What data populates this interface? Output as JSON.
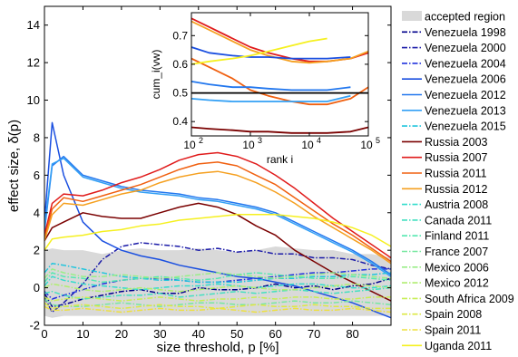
{
  "chart_data": {
    "type": "line",
    "xlabel": "size threshold, p [%]",
    "ylabel": "effect size, δ(p)",
    "xlim": [
      0,
      90
    ],
    "ylim": [
      -2,
      15
    ],
    "xticks": [
      0,
      10,
      20,
      30,
      40,
      50,
      60,
      70,
      80
    ],
    "yticks": [
      -2,
      0,
      2,
      4,
      6,
      8,
      10,
      12,
      14
    ],
    "grid": false,
    "legend_placement": "right, outside plot",
    "accepted_region": {
      "label": "accepted region",
      "color": "#d9d9d9",
      "x": [
        0,
        2,
        5,
        10,
        15,
        20,
        25,
        30,
        35,
        40,
        45,
        50,
        55,
        60,
        65,
        70,
        75,
        80,
        85,
        90
      ],
      "upper": [
        2.0,
        2.1,
        2.0,
        2.0,
        1.8,
        2.0,
        2.1,
        2.0,
        2.0,
        2.1,
        2.0,
        1.9,
        2.0,
        2.2,
        2.1,
        2.0,
        2.0,
        1.8,
        1.8,
        1.6
      ],
      "lower": [
        -1.5,
        -1.6,
        -1.5,
        -1.5,
        -1.5,
        -1.5,
        -1.5,
        -1.5,
        -1.5,
        -1.5,
        -1.5,
        -1.5,
        -1.5,
        -1.5,
        -1.5,
        -1.5,
        -1.5,
        -1.5,
        -1.5,
        -1.5
      ]
    },
    "x": [
      0,
      2,
      5,
      10,
      15,
      20,
      25,
      30,
      35,
      40,
      45,
      50,
      55,
      60,
      65,
      70,
      75,
      80,
      85,
      90
    ],
    "series": [
      {
        "name": "Venezuela 1998",
        "color": "#00008b",
        "dash": "dashdot",
        "values": [
          -0.3,
          -1.0,
          -0.9,
          -0.6,
          -0.4,
          -0.2,
          -0.1,
          -0.3,
          -0.3,
          0.0,
          -0.1,
          -0.1,
          0.0,
          0.2,
          0.0,
          0.1,
          -0.1,
          0.1,
          0.2,
          0.5
        ]
      },
      {
        "name": "Venezuela 2000",
        "color": "#1b1ba8",
        "dash": "dashdot",
        "values": [
          -0.5,
          -1.3,
          -0.8,
          0.2,
          1.5,
          2.2,
          2.4,
          2.3,
          2.2,
          2.0,
          2.1,
          1.9,
          2.0,
          1.8,
          1.8,
          1.6,
          1.6,
          1.5,
          1.2,
          1.0
        ]
      },
      {
        "name": "Venezuela 2004",
        "color": "#2233dd",
        "dash": "dashdot",
        "values": [
          -0.2,
          -0.6,
          -0.4,
          -0.1,
          0.2,
          0.4,
          0.5,
          0.5,
          0.4,
          0.3,
          0.3,
          0.4,
          0.5,
          0.6,
          0.7,
          0.8,
          0.8,
          0.9,
          1.0,
          1.0
        ]
      },
      {
        "name": "Venezuela 2006",
        "color": "#1a4fe0",
        "dash": "solid",
        "values": [
          3.5,
          8.8,
          6.0,
          3.5,
          2.5,
          2.0,
          1.7,
          1.5,
          1.2,
          1.0,
          0.8,
          0.6,
          0.5,
          0.3,
          0.1,
          -0.2,
          -0.5,
          -0.8,
          -1.2,
          -1.6
        ]
      },
      {
        "name": "Venezuela 2012",
        "color": "#2277ee",
        "dash": "solid",
        "values": [
          3.0,
          6.5,
          7.0,
          6.0,
          5.7,
          5.4,
          5.2,
          5.1,
          5.0,
          4.8,
          4.7,
          4.5,
          4.3,
          4.0,
          3.5,
          3.0,
          2.5,
          2.0,
          1.4,
          0.7
        ]
      },
      {
        "name": "Venezuela 2013",
        "color": "#33a0f5",
        "dash": "solid",
        "values": [
          3.2,
          6.6,
          6.9,
          5.9,
          5.6,
          5.3,
          5.1,
          5.0,
          4.9,
          4.7,
          4.6,
          4.4,
          4.2,
          3.9,
          3.4,
          2.9,
          2.4,
          1.9,
          1.3,
          0.6
        ]
      },
      {
        "name": "Venezuela 2015",
        "color": "#22c5dd",
        "dash": "dashdot",
        "values": [
          0.8,
          1.3,
          1.2,
          1.0,
          0.8,
          0.6,
          0.5,
          0.4,
          0.4,
          0.3,
          0.3,
          0.3,
          0.4,
          0.5,
          0.5,
          0.6,
          0.6,
          0.7,
          0.7,
          0.8
        ]
      },
      {
        "name": "Russia 2003",
        "color": "#7a0000",
        "dash": "solid",
        "values": [
          2.5,
          3.2,
          3.5,
          4.0,
          3.8,
          3.7,
          3.7,
          4.0,
          4.3,
          4.5,
          4.3,
          3.9,
          3.3,
          2.8,
          2.0,
          1.4,
          0.8,
          0.3,
          -0.2,
          -0.7
        ]
      },
      {
        "name": "Russia 2007",
        "color": "#e01b1b",
        "dash": "solid",
        "values": [
          2.8,
          4.5,
          5.0,
          4.9,
          5.2,
          5.6,
          5.9,
          6.3,
          6.8,
          7.1,
          7.2,
          7.0,
          6.6,
          6.0,
          5.3,
          4.5,
          3.7,
          3.0,
          2.3,
          1.6
        ]
      },
      {
        "name": "Russia 2011",
        "color": "#f06010",
        "dash": "solid",
        "values": [
          2.6,
          4.2,
          4.8,
          4.6,
          4.9,
          5.2,
          5.5,
          5.9,
          6.3,
          6.6,
          6.7,
          6.5,
          6.0,
          5.5,
          4.8,
          4.1,
          3.4,
          2.8,
          2.1,
          1.4
        ]
      },
      {
        "name": "Russia 2012",
        "color": "#f5a020",
        "dash": "solid",
        "values": [
          2.5,
          3.9,
          4.5,
          4.4,
          4.7,
          5.0,
          5.2,
          5.6,
          5.9,
          6.1,
          6.2,
          6.0,
          5.6,
          5.1,
          4.5,
          3.8,
          3.2,
          2.6,
          2.0,
          1.3
        ]
      },
      {
        "name": "Austria 2008",
        "color": "#33ddcc",
        "dash": "dashdot",
        "values": [
          0.1,
          0.6,
          0.4,
          0.2,
          0.1,
          0.0,
          -0.1,
          0.0,
          0.1,
          0.1,
          0.2,
          0.1,
          0.0,
          0.1,
          0.2,
          0.2,
          0.1,
          0.0,
          0.0,
          0.1
        ]
      },
      {
        "name": "Canada 2011",
        "color": "#44e0c0",
        "dash": "dashdot",
        "values": [
          -0.3,
          -0.2,
          -0.4,
          -0.6,
          -0.5,
          -0.4,
          -0.4,
          -0.3,
          -0.5,
          -0.4,
          -0.3,
          -0.2,
          -0.3,
          -0.2,
          -0.1,
          -0.2,
          -0.3,
          -0.2,
          -0.1,
          0.0
        ]
      },
      {
        "name": "Finland 2011",
        "color": "#55e8b0",
        "dash": "dashdot",
        "values": [
          0.3,
          0.8,
          0.6,
          0.5,
          0.3,
          0.4,
          0.5,
          0.6,
          0.5,
          0.4,
          0.5,
          0.7,
          0.8,
          0.7,
          0.6,
          0.5,
          0.5,
          0.6,
          0.5,
          0.4
        ]
      },
      {
        "name": "France 2007",
        "color": "#77e8a0",
        "dash": "dashdot",
        "values": [
          -0.6,
          -0.9,
          -1.0,
          -1.0,
          -0.9,
          -0.8,
          -0.9,
          -1.0,
          -0.9,
          -0.8,
          -0.8,
          -0.9,
          -0.9,
          -0.8,
          -0.7,
          -0.8,
          -0.8,
          -0.7,
          -0.8,
          -0.9
        ]
      },
      {
        "name": "Mexico 2006",
        "color": "#99ee88",
        "dash": "dashdot",
        "values": [
          0.5,
          1.0,
          0.8,
          0.6,
          0.6,
          0.7,
          0.6,
          0.5,
          0.6,
          0.7,
          0.8,
          0.7,
          0.6,
          0.5,
          0.6,
          0.7,
          0.8,
          0.7,
          0.6,
          0.5
        ]
      },
      {
        "name": "Mexico 2012",
        "color": "#b0ee70",
        "dash": "dashdot",
        "values": [
          0.0,
          0.2,
          0.1,
          -0.1,
          -0.2,
          -0.1,
          0.0,
          -0.1,
          -0.2,
          -0.1,
          0.0,
          0.1,
          0.0,
          -0.1,
          -0.1,
          0.0,
          0.1,
          0.2,
          0.1,
          0.0
        ]
      },
      {
        "name": "South Africa 2009",
        "color": "#c8ee55",
        "dash": "dashdot",
        "values": [
          -0.5,
          -0.7,
          -0.6,
          -0.5,
          -0.6,
          -0.7,
          -0.6,
          -0.5,
          -0.6,
          -0.7,
          -0.6,
          -0.6,
          -0.5,
          -0.6,
          -0.5,
          -0.5,
          -0.6,
          -0.6,
          -0.5,
          -0.5
        ]
      },
      {
        "name": "Spain 2008",
        "color": "#dde844",
        "dash": "dashdot",
        "values": [
          -0.8,
          -1.1,
          -1.0,
          -0.9,
          -1.0,
          -1.1,
          -1.0,
          -0.9,
          -1.0,
          -1.0,
          -1.1,
          -1.0,
          -0.9,
          -1.0,
          -1.0,
          -0.9,
          -1.0,
          -1.0,
          -1.1,
          -1.1
        ]
      },
      {
        "name": "Spain 2011",
        "color": "#eee040",
        "dash": "dashdot",
        "values": [
          -1.0,
          -1.2,
          -1.2,
          -1.1,
          -1.2,
          -1.3,
          -1.2,
          -1.1,
          -1.2,
          -1.2,
          -1.1,
          -1.2,
          -1.3,
          -1.2,
          -1.1,
          -1.2,
          -1.2,
          -1.1,
          -1.2,
          -1.3
        ]
      },
      {
        "name": "Uganda 2011",
        "color": "#f5f020",
        "dash": "solid",
        "values": [
          2.0,
          2.6,
          2.7,
          2.8,
          3.0,
          3.1,
          3.3,
          3.4,
          3.6,
          3.7,
          3.8,
          3.9,
          3.9,
          3.9,
          3.8,
          3.7,
          3.5,
          3.2,
          2.8,
          2.2
        ]
      }
    ],
    "inset": {
      "type": "line",
      "xlabel": "rank i",
      "ylabel": "cum_i(vw)",
      "xscale": "log",
      "xlim": [
        100,
        100000
      ],
      "ylim": [
        0.35,
        0.78
      ],
      "xticks": [
        100,
        1000,
        10000,
        100000
      ],
      "xtick_labels": [
        "10",
        "10",
        "10",
        "10"
      ],
      "xtick_exponents": [
        "2",
        "3",
        "4",
        "5"
      ],
      "yticks": [
        0.4,
        0.5,
        0.6,
        0.7
      ],
      "ytick_labels": [
        "0.4",
        "0.5",
        "0.6",
        "0.7"
      ],
      "x": [
        100,
        200,
        500,
        1000,
        2000,
        5000,
        10000,
        20000,
        50000,
        100000
      ],
      "series": [
        {
          "name": "Russia 2003",
          "color": "#7a0000",
          "values": [
            0.38,
            0.375,
            0.37,
            0.365,
            0.365,
            0.36,
            0.36,
            0.36,
            0.365,
            0.38
          ]
        },
        {
          "name": "Russia 2007",
          "color": "#e01b1b",
          "values": [
            0.76,
            0.73,
            0.69,
            0.66,
            0.64,
            0.62,
            0.61,
            0.61,
            0.62,
            0.64
          ]
        },
        {
          "name": "Russia 2011",
          "color": "#f06010",
          "values": [
            0.62,
            0.59,
            0.55,
            0.51,
            0.49,
            0.47,
            0.46,
            0.46,
            0.48,
            0.52
          ]
        },
        {
          "name": "Russia 2012",
          "color": "#f5a020",
          "values": [
            0.75,
            0.72,
            0.68,
            0.65,
            0.63,
            0.61,
            0.605,
            0.61,
            0.62,
            0.645
          ]
        },
        {
          "name": "Venezuela 2006",
          "color": "#1a4fe0",
          "values": [
            0.66,
            0.64,
            0.63,
            0.625,
            0.625,
            0.62,
            0.62,
            0.62,
            0.625,
            null
          ]
        },
        {
          "name": "Venezuela 2012",
          "color": "#2277ee",
          "values": [
            0.54,
            0.53,
            0.52,
            0.52,
            0.515,
            0.51,
            0.51,
            0.51,
            0.52,
            null
          ]
        },
        {
          "name": "Venezuela 2013",
          "color": "#33a0f5",
          "values": [
            0.48,
            0.475,
            0.47,
            0.47,
            0.47,
            0.47,
            0.47,
            0.47,
            0.49,
            null
          ]
        },
        {
          "name": "Venezuela 1998",
          "color": "#000000",
          "values": [
            0.5,
            0.5,
            0.5,
            0.5,
            0.5,
            0.5,
            0.5,
            0.5,
            0.5,
            0.5
          ]
        },
        {
          "name": "Uganda 2011",
          "color": "#f5f020",
          "values": [
            0.6,
            0.61,
            0.62,
            0.63,
            0.645,
            0.665,
            0.68,
            0.69,
            null,
            null
          ]
        }
      ]
    }
  }
}
